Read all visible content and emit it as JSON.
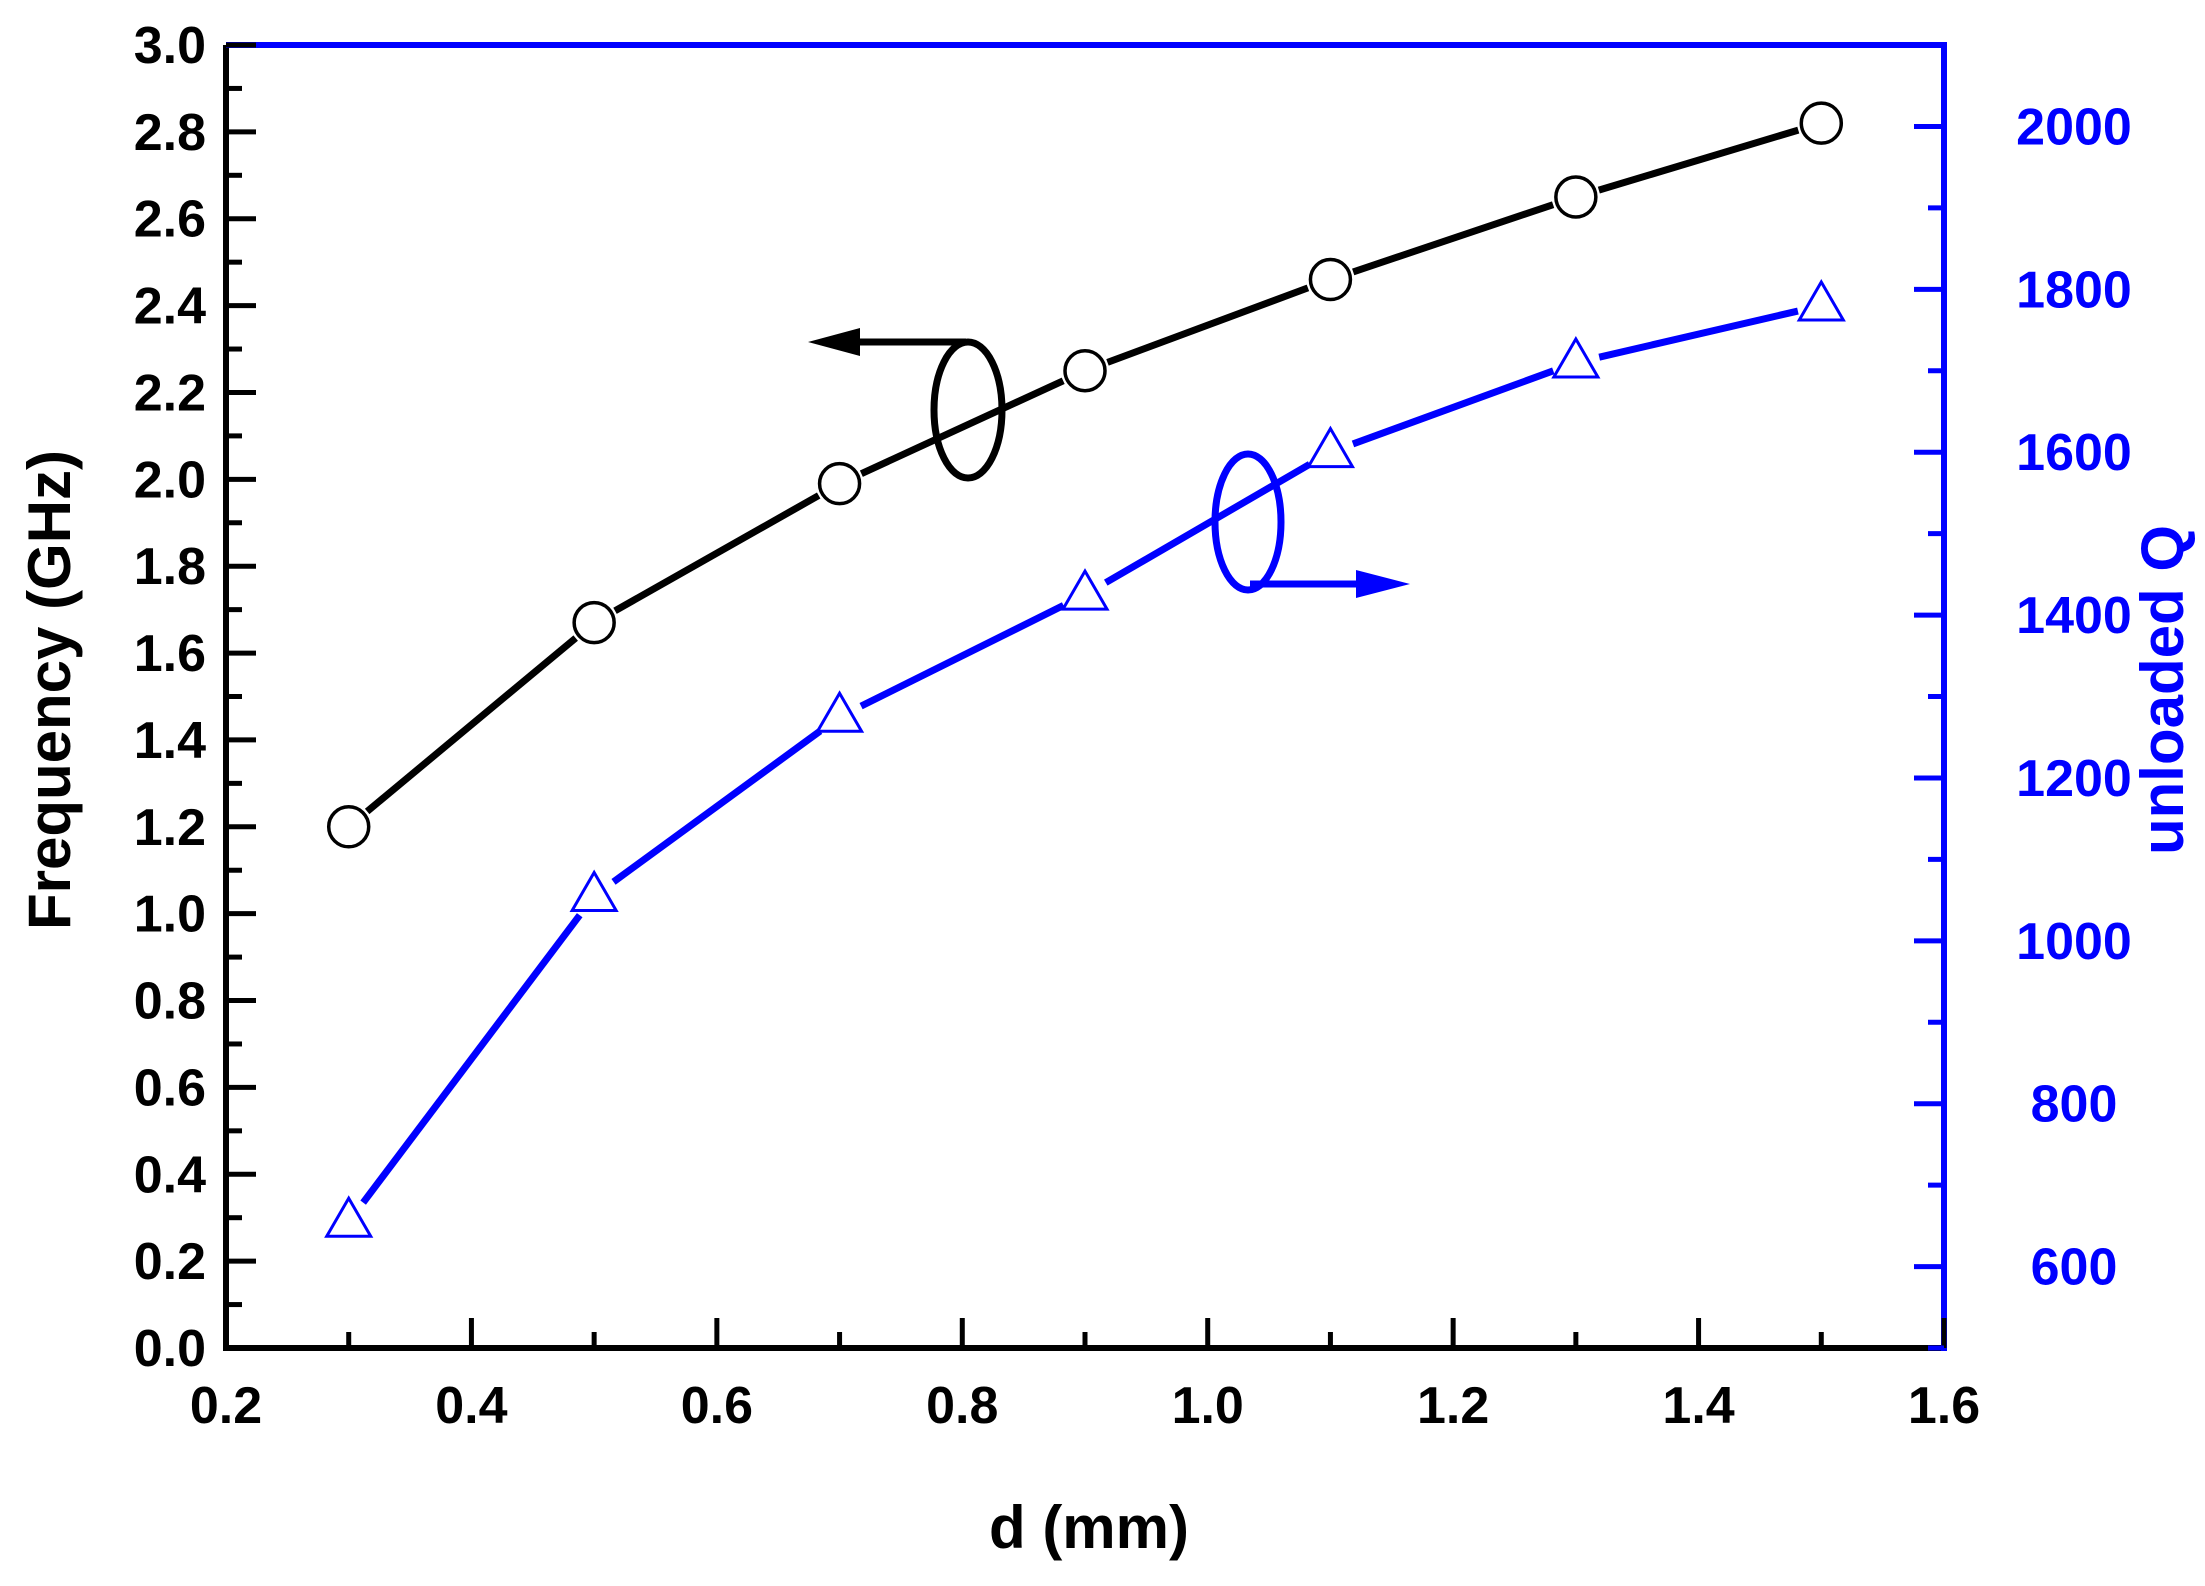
{
  "chart_data": {
    "type": "line",
    "xlabel": "d (mm)",
    "ylabel_left": "Frequency (GHz)",
    "ylabel_right": "unloaded Q",
    "xlim": [
      0.2,
      1.6
    ],
    "ylim_left": [
      0.0,
      3.0
    ],
    "ylim_right": [
      500,
      2100
    ],
    "x_ticks": [
      "0.2",
      "0.4",
      "0.6",
      "0.8",
      "1.0",
      "1.2",
      "1.4",
      "1.6"
    ],
    "y_left_ticks": [
      "0.0",
      "0.2",
      "0.4",
      "0.6",
      "0.8",
      "1.0",
      "1.2",
      "1.4",
      "1.6",
      "1.8",
      "2.0",
      "2.2",
      "2.4",
      "2.6",
      "2.8",
      "3.0"
    ],
    "y_right_ticks": [
      "600",
      "800",
      "1000",
      "1200",
      "1400",
      "1600",
      "1800",
      "2000"
    ],
    "x": [
      0.3,
      0.5,
      0.7,
      0.9,
      1.1,
      1.3,
      1.5
    ],
    "series": [
      {
        "axis": "left",
        "marker": "circle",
        "color": "#000000",
        "values": [
          1.2,
          1.67,
          1.99,
          2.25,
          2.46,
          2.65,
          2.82
        ]
      },
      {
        "axis": "right",
        "marker": "triangle",
        "color": "#0000ff",
        "values": [
          655,
          1055,
          1275,
          1425,
          1600,
          1710,
          1780
        ]
      }
    ],
    "grid": false,
    "legend": "none",
    "annotations": [
      {
        "kind": "axis-indicator-arrow",
        "series": 0,
        "direction": "left"
      },
      {
        "kind": "axis-indicator-arrow",
        "series": 1,
        "direction": "right"
      }
    ]
  }
}
